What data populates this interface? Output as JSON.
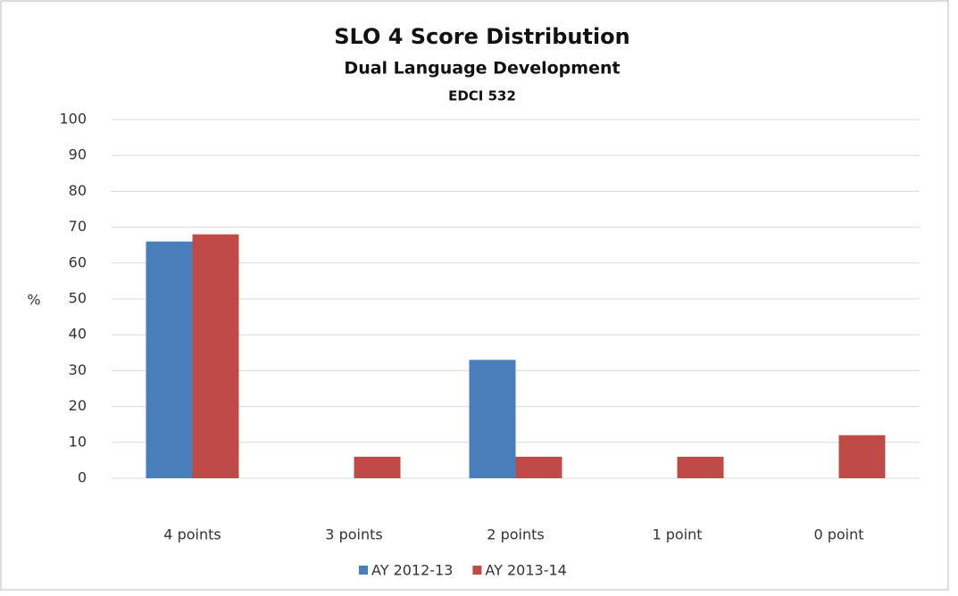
{
  "chart_data": {
    "type": "bar",
    "title": "SLO 4 Score Distribution",
    "subtitle": [
      "Dual Language Development",
      "EDCI 532"
    ],
    "y_label": "%",
    "categories": [
      "4 points",
      "3 points",
      "2 points",
      "1 point",
      "0 point"
    ],
    "series": [
      {
        "name": "AY 2012-13",
        "color": "#4a7ebb",
        "values": [
          66,
          0,
          33,
          0,
          0
        ]
      },
      {
        "name": "AY 2013-14",
        "color": "#be4b48",
        "values": [
          68,
          6,
          6,
          6,
          12
        ]
      }
    ],
    "ylim": [
      0,
      100
    ],
    "yticks": [
      0,
      10,
      20,
      30,
      40,
      50,
      60,
      70,
      80,
      90,
      100
    ],
    "grid": true,
    "legend": "bottom"
  }
}
